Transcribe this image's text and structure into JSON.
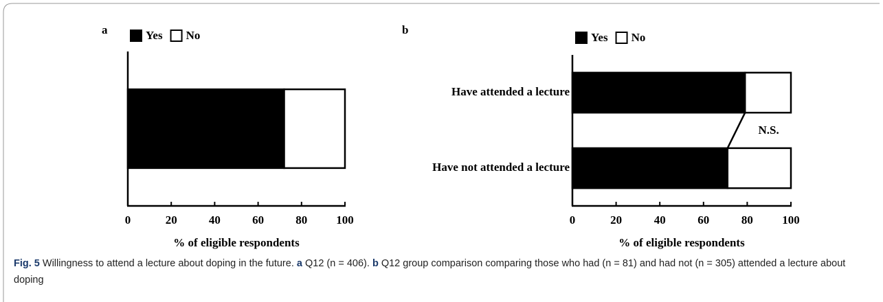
{
  "chart_data": [
    {
      "type": "bar",
      "orientation": "horizontal",
      "stacked": true,
      "panel_label": "a",
      "xlabel": "% of eligible respondents",
      "categories": [
        null
      ],
      "series": [
        {
          "name": "Yes",
          "color": "#000000",
          "values": [
            72
          ]
        },
        {
          "name": "No",
          "color": "#ffffff",
          "values": [
            28
          ]
        }
      ],
      "xlim": [
        0,
        100
      ],
      "xticks": [
        0,
        20,
        40,
        60,
        80,
        100
      ]
    },
    {
      "type": "bar",
      "orientation": "horizontal",
      "stacked": true,
      "panel_label": "b",
      "xlabel": "% of eligible respondents",
      "categories": [
        "Have attended a lecture",
        "Have not attended a lecture"
      ],
      "series": [
        {
          "name": "Yes",
          "color": "#000000",
          "values": [
            79,
            71
          ]
        },
        {
          "name": "No",
          "color": "#ffffff",
          "values": [
            21,
            29
          ]
        }
      ],
      "annotation": "N.S.",
      "xlim": [
        0,
        100
      ],
      "xticks": [
        0,
        20,
        40,
        60,
        80,
        100
      ]
    }
  ],
  "caption": [
    {
      "text": "Fig. 5",
      "bold": true
    },
    {
      "text": " Willingness to attend a lecture about doping in the future. "
    },
    {
      "text": "a",
      "bold": true
    },
    {
      "text": " Q12 (n = 406). "
    },
    {
      "text": "b",
      "bold": true
    },
    {
      "text": " Q12 group comparison comparing those who had (n = 81) and had not (n = 305) attended a lecture about doping"
    }
  ]
}
